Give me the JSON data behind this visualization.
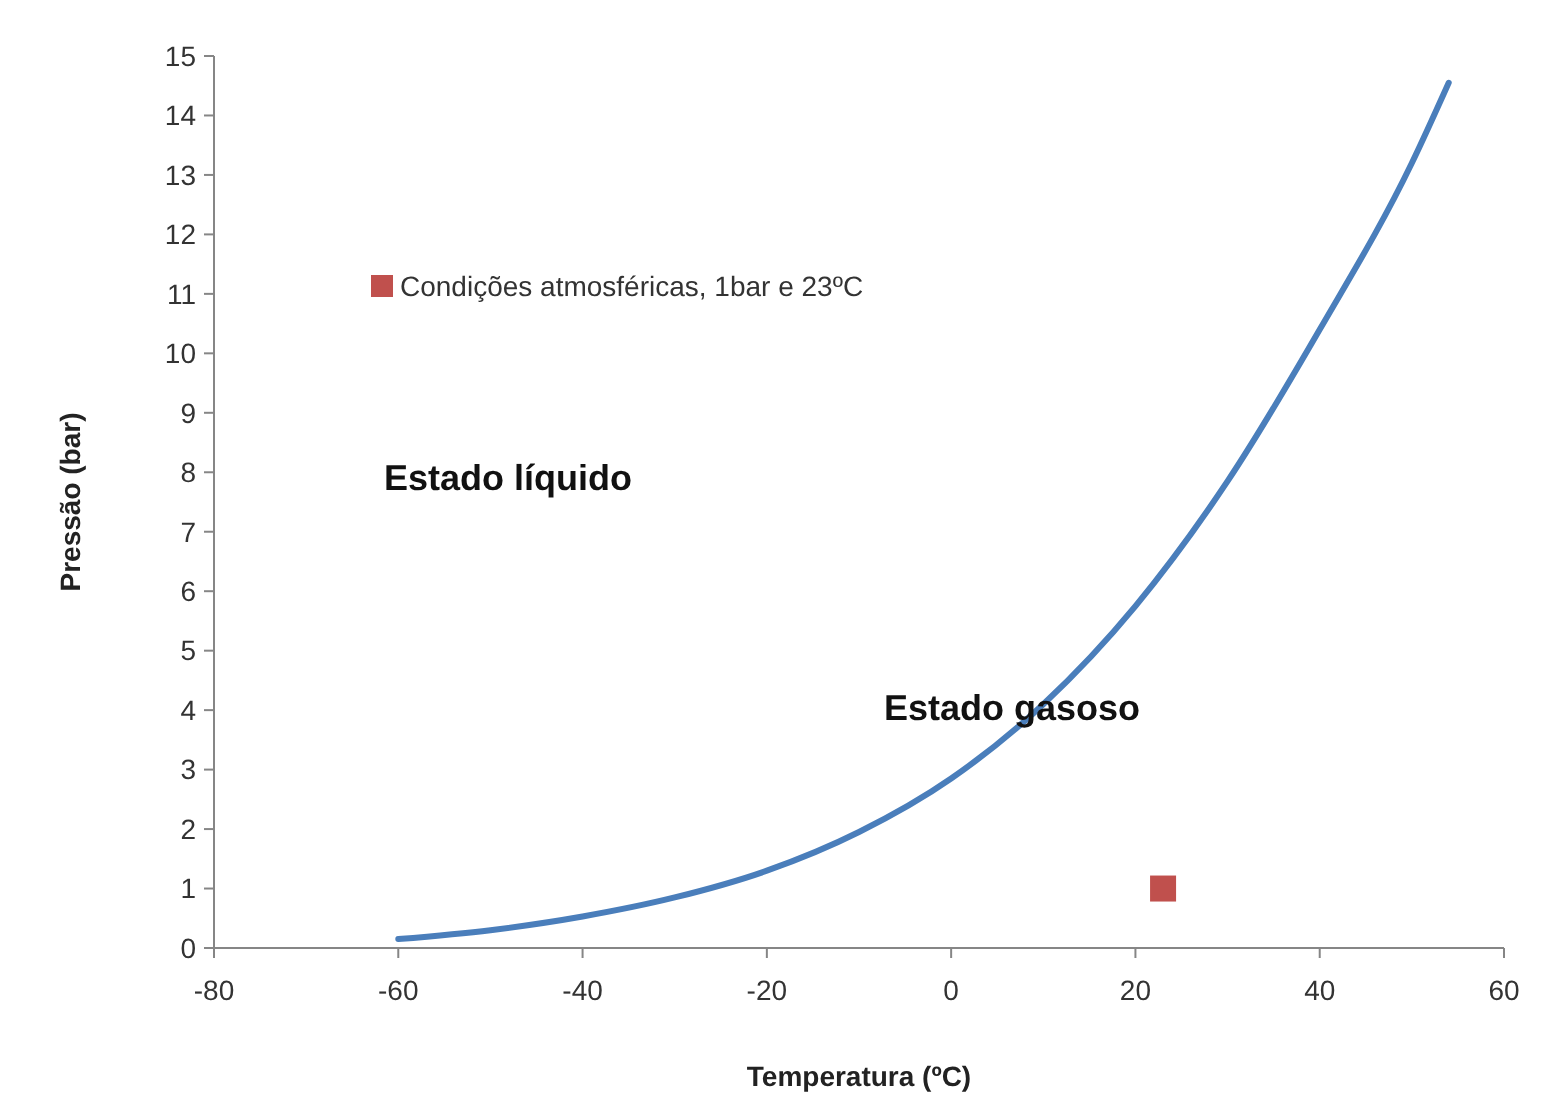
{
  "chart_data": {
    "type": "line",
    "xlabel": "Temperatura (ºC)",
    "ylabel": "Pressão (bar)",
    "xlim": [
      -80,
      60
    ],
    "xticks": [
      -80,
      -60,
      -40,
      -20,
      0,
      20,
      40,
      60
    ],
    "ylim": [
      0,
      15
    ],
    "yticks": [
      0,
      1,
      2,
      3,
      4,
      5,
      6,
      7,
      8,
      9,
      10,
      11,
      12,
      13,
      14,
      15
    ],
    "grid": false,
    "legend": "top left",
    "annotations": [
      "Estado líquido",
      "Estado gasoso"
    ],
    "series": [
      {
        "color": "#4a7ebb",
        "marker": "none",
        "line_style": "solid",
        "x": [
          -60,
          -50,
          -40,
          -30,
          -20,
          -10,
          0,
          10,
          20,
          30,
          40,
          50,
          54
        ],
        "values": [
          0.15,
          0.3,
          0.53,
          0.85,
          1.3,
          1.95,
          2.85,
          4.1,
          5.75,
          7.85,
          10.4,
          13.2,
          14.55
        ]
      },
      {
        "type": "scatter",
        "name": "Condições atmosféricas, 1bar e 23ºC",
        "color": "#c0504d",
        "marker": "square",
        "x": [
          23
        ],
        "values": [
          1
        ]
      }
    ]
  }
}
